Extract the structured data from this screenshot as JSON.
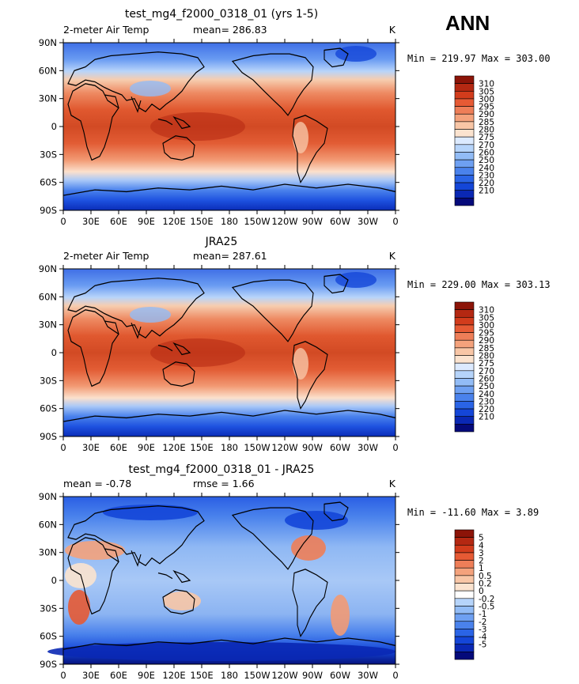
{
  "big_label": "ANN",
  "colors": {
    "temp_scale": [
      "#050a7a",
      "#0a28b4",
      "#1446d8",
      "#2a64e6",
      "#4a82ec",
      "#6ea0f2",
      "#92bcf6",
      "#b6d4fa",
      "#dceaff",
      "#fbe3cf",
      "#f8c6a6",
      "#f4a27c",
      "#ee7e58",
      "#e65a34",
      "#d23c1c",
      "#b42812",
      "#8c1408"
    ],
    "diff_scale": [
      "#050a7a",
      "#0a28b4",
      "#1446d8",
      "#2a64e6",
      "#4a82ec",
      "#6ea0f2",
      "#92bcf6",
      "#b6d4fa",
      "#ffffff",
      "#fbe3cf",
      "#f8c6a6",
      "#f4a27c",
      "#ee7e58",
      "#e65a34",
      "#d23c1c",
      "#b42812",
      "#8c1408"
    ]
  },
  "chart_data": [
    {
      "type": "heatmap",
      "title": "test_mg4_f2000_0318_01 (yrs 1-5)",
      "left_label": "2-meter Air Temp",
      "stats_text": "mean= 286.83",
      "units": "K",
      "minmax_text": "Min = 219.97 Max = 303.00",
      "x_ticks": [
        "0",
        "30E",
        "60E",
        "90E",
        "120E",
        "150E",
        "180",
        "150W",
        "120W",
        "90W",
        "60W",
        "30W",
        "0"
      ],
      "y_ticks": [
        "90N",
        "60N",
        "30N",
        "0",
        "30S",
        "60S",
        "90S"
      ],
      "colorbar_labels": [
        "310",
        "305",
        "300",
        "295",
        "290",
        "285",
        "280",
        "275",
        "270",
        "260",
        "250",
        "240",
        "230",
        "220",
        "210"
      ],
      "color_scale": "temp_scale"
    },
    {
      "type": "heatmap",
      "title": "JRA25",
      "left_label": "2-meter Air Temp",
      "stats_text": "mean= 287.61",
      "units": "K",
      "minmax_text": "Min = 229.00 Max = 303.13",
      "x_ticks": [
        "0",
        "30E",
        "60E",
        "90E",
        "120E",
        "150E",
        "180",
        "150W",
        "120W",
        "90W",
        "60W",
        "30W",
        "0"
      ],
      "y_ticks": [
        "90N",
        "60N",
        "30N",
        "0",
        "30S",
        "60S",
        "90S"
      ],
      "colorbar_labels": [
        "310",
        "305",
        "300",
        "295",
        "290",
        "285",
        "280",
        "275",
        "270",
        "260",
        "250",
        "240",
        "230",
        "220",
        "210"
      ],
      "color_scale": "temp_scale"
    },
    {
      "type": "heatmap",
      "title": "test_mg4_f2000_0318_01 - JRA25",
      "left_label": "mean =   -0.78",
      "stats_text": "rmse =    1.66",
      "units": "K",
      "minmax_text": "Min = -11.60 Max =   3.89",
      "x_ticks": [
        "0",
        "30E",
        "60E",
        "90E",
        "120E",
        "150E",
        "180",
        "150W",
        "120W",
        "90W",
        "60W",
        "30W",
        "0"
      ],
      "y_ticks": [
        "90N",
        "60N",
        "30N",
        "0",
        "30S",
        "60S",
        "90S"
      ],
      "colorbar_labels": [
        "5",
        "4",
        "3",
        "2",
        "1",
        "0.5",
        "0.2",
        "0",
        "-0.2",
        "-0.5",
        "-1",
        "-2",
        "-3",
        "-4",
        "-5"
      ],
      "color_scale": "diff_scale"
    }
  ]
}
